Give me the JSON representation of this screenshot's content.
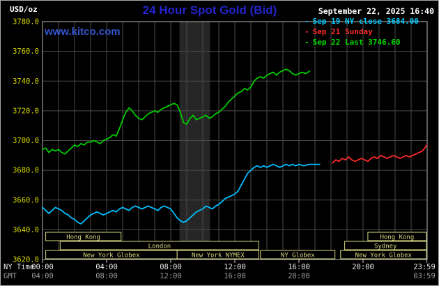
{
  "header": {
    "unit": "USD/oz",
    "title": "24 Hour Spot Gold (Bid)",
    "datetime": "September 22, 2025 16:40",
    "watermark": "www.kitco.com"
  },
  "legend": [
    {
      "marker": "-",
      "label": "Sep 19 NY close 3684.00",
      "color": "#00ccff"
    },
    {
      "marker": "-",
      "label": "Sep 21 Sunday",
      "color": "#ff2a2a"
    },
    {
      "marker": "-",
      "label": "Sep 22 Last 3746.60",
      "color": "#00dd00"
    }
  ],
  "colors": {
    "background": "#000000",
    "border": "#a8a8a8",
    "grid": "#4a4a4a",
    "plot_border": "#b9b9b9",
    "shade_band": "#262626",
    "tick_mark": "#cccccc",
    "y_tick": "#d4d400",
    "x_tick_ny": "#e8e8e8",
    "x_tick_gmt": "#9a9a9a",
    "session": "#d8d882",
    "title": "#2424cc",
    "watermark": "#3355d0",
    "datetime": "#ffffff",
    "unit": "#ffffff"
  },
  "axes": {
    "ny_label": "NY Time",
    "gmt_label": "GMT",
    "y_ticks": [
      "3780.0",
      "3760.0",
      "3740.0",
      "3720.0",
      "3700.0",
      "3680.0",
      "3660.0",
      "3640.0",
      "3620.0"
    ],
    "x_ticks_ny": [
      {
        "hour": 0,
        "label": "00:00"
      },
      {
        "hour": 4,
        "label": "04:00"
      },
      {
        "hour": 8,
        "label": "08:00"
      },
      {
        "hour": 12,
        "label": "12:00"
      },
      {
        "hour": 16,
        "label": "16:00"
      },
      {
        "hour": 20,
        "label": "20:00"
      },
      {
        "hour": 23.983,
        "label": "23:59"
      }
    ],
    "x_ticks_gmt": [
      {
        "hour": 0,
        "label": "04:00"
      },
      {
        "hour": 4,
        "label": "08:00"
      },
      {
        "hour": 8,
        "label": "12:00"
      },
      {
        "hour": 12,
        "label": "16:00"
      },
      {
        "hour": 16,
        "label": "20:00"
      },
      {
        "hour": 23.983,
        "label": "03:59"
      }
    ]
  },
  "sessions": [
    {
      "row": 0,
      "label": "Hong Kong",
      "start": 0.2,
      "end": 4.9
    },
    {
      "row": 0,
      "label": "Hong Kong",
      "start": 20.3,
      "end": 23.95
    },
    {
      "row": 1,
      "label": "London",
      "start": 1.1,
      "end": 13.5
    },
    {
      "row": 1,
      "label": "Sydney",
      "start": 18.85,
      "end": 23.95
    },
    {
      "row": 2,
      "label": "New York Globex",
      "start": 0.2,
      "end": 8.4
    },
    {
      "row": 2,
      "label": "New York NYMEX",
      "start": 8.4,
      "end": 13.5
    },
    {
      "row": 2,
      "label": "NY Globex",
      "start": 13.6,
      "end": 18.25
    },
    {
      "row": 2,
      "label": "New York Globex",
      "start": 18.6,
      "end": 23.95
    }
  ],
  "chart_data": {
    "type": "line",
    "title": "24 Hour Spot Gold (Bid)",
    "ylabel": "USD/oz",
    "xlabel": "NY Time (hours)",
    "ylim": [
      3620,
      3780
    ],
    "y_tick_step": 20,
    "xlim_hours": [
      0,
      24
    ],
    "grid": true,
    "legend_position": "top-right",
    "shaded_band_hours": [
      8.55,
      10.45
    ],
    "series": [
      {
        "name": "Sep 19 NY close 3684.00",
        "color": "#00bfff",
        "points": [
          [
            0,
            3655
          ],
          [
            0.2,
            3653
          ],
          [
            0.4,
            3651
          ],
          [
            0.6,
            3653
          ],
          [
            0.8,
            3655
          ],
          [
            1,
            3654
          ],
          [
            1.2,
            3653
          ],
          [
            1.4,
            3651
          ],
          [
            1.6,
            3650
          ],
          [
            1.8,
            3648
          ],
          [
            2,
            3647
          ],
          [
            2.2,
            3645
          ],
          [
            2.4,
            3644
          ],
          [
            2.6,
            3646
          ],
          [
            2.8,
            3648
          ],
          [
            3,
            3650
          ],
          [
            3.2,
            3651
          ],
          [
            3.4,
            3652
          ],
          [
            3.6,
            3651
          ],
          [
            3.8,
            3650
          ],
          [
            4,
            3651
          ],
          [
            4.2,
            3652
          ],
          [
            4.4,
            3653
          ],
          [
            4.6,
            3652
          ],
          [
            4.8,
            3654
          ],
          [
            5,
            3655
          ],
          [
            5.2,
            3654
          ],
          [
            5.4,
            3653
          ],
          [
            5.6,
            3655
          ],
          [
            5.8,
            3656
          ],
          [
            6,
            3655
          ],
          [
            6.2,
            3654
          ],
          [
            6.4,
            3655
          ],
          [
            6.6,
            3656
          ],
          [
            6.8,
            3655
          ],
          [
            7,
            3654
          ],
          [
            7.2,
            3653
          ],
          [
            7.4,
            3655
          ],
          [
            7.6,
            3656
          ],
          [
            7.8,
            3655
          ],
          [
            8,
            3654
          ],
          [
            8.2,
            3651
          ],
          [
            8.4,
            3648
          ],
          [
            8.6,
            3646
          ],
          [
            8.8,
            3645
          ],
          [
            9,
            3646
          ],
          [
            9.2,
            3648
          ],
          [
            9.4,
            3650
          ],
          [
            9.6,
            3652
          ],
          [
            9.8,
            3653
          ],
          [
            10,
            3654
          ],
          [
            10.2,
            3656
          ],
          [
            10.4,
            3655
          ],
          [
            10.6,
            3654
          ],
          [
            10.8,
            3656
          ],
          [
            11,
            3657
          ],
          [
            11.2,
            3659
          ],
          [
            11.4,
            3661
          ],
          [
            11.6,
            3662
          ],
          [
            11.8,
            3663
          ],
          [
            12,
            3664
          ],
          [
            12.2,
            3666
          ],
          [
            12.4,
            3670
          ],
          [
            12.6,
            3674
          ],
          [
            12.8,
            3678
          ],
          [
            13,
            3680
          ],
          [
            13.2,
            3682
          ],
          [
            13.4,
            3683
          ],
          [
            13.6,
            3682
          ],
          [
            13.8,
            3683
          ],
          [
            14,
            3682
          ],
          [
            14.2,
            3683
          ],
          [
            14.4,
            3684
          ],
          [
            14.6,
            3683
          ],
          [
            14.8,
            3682
          ],
          [
            15,
            3683
          ],
          [
            15.2,
            3684
          ],
          [
            15.4,
            3683
          ],
          [
            15.6,
            3684
          ],
          [
            15.8,
            3683
          ],
          [
            16,
            3684
          ],
          [
            16.3,
            3683
          ],
          [
            16.6,
            3684
          ],
          [
            17,
            3684
          ],
          [
            17.3,
            3684
          ]
        ]
      },
      {
        "name": "Sep 21 Sunday",
        "color": "#ff2a2a",
        "points": [
          [
            18.1,
            3685
          ],
          [
            18.3,
            3687
          ],
          [
            18.5,
            3686
          ],
          [
            18.7,
            3688
          ],
          [
            18.9,
            3687
          ],
          [
            19.1,
            3689
          ],
          [
            19.3,
            3687
          ],
          [
            19.5,
            3686
          ],
          [
            19.7,
            3687
          ],
          [
            19.9,
            3688
          ],
          [
            20.1,
            3687
          ],
          [
            20.3,
            3686
          ],
          [
            20.5,
            3688
          ],
          [
            20.7,
            3689
          ],
          [
            20.9,
            3688
          ],
          [
            21.1,
            3690
          ],
          [
            21.3,
            3689
          ],
          [
            21.5,
            3688
          ],
          [
            21.7,
            3689
          ],
          [
            21.9,
            3690
          ],
          [
            22.1,
            3689
          ],
          [
            22.3,
            3688
          ],
          [
            22.5,
            3689
          ],
          [
            22.7,
            3690
          ],
          [
            22.9,
            3689
          ],
          [
            23.1,
            3690
          ],
          [
            23.3,
            3691
          ],
          [
            23.5,
            3692
          ],
          [
            23.7,
            3693
          ],
          [
            23.85,
            3695
          ],
          [
            23.98,
            3697
          ]
        ]
      },
      {
        "name": "Sep 22 Last 3746.60",
        "color": "#00cc00",
        "points": [
          [
            0,
            3694
          ],
          [
            0.2,
            3695
          ],
          [
            0.4,
            3692
          ],
          [
            0.6,
            3694
          ],
          [
            0.8,
            3693
          ],
          [
            1,
            3694
          ],
          [
            1.2,
            3692
          ],
          [
            1.4,
            3691
          ],
          [
            1.6,
            3693
          ],
          [
            1.8,
            3695
          ],
          [
            2,
            3697
          ],
          [
            2.2,
            3696
          ],
          [
            2.4,
            3698
          ],
          [
            2.6,
            3697
          ],
          [
            2.8,
            3699
          ],
          [
            3,
            3699
          ],
          [
            3.2,
            3700
          ],
          [
            3.4,
            3699
          ],
          [
            3.6,
            3698
          ],
          [
            3.8,
            3700
          ],
          [
            4,
            3701
          ],
          [
            4.2,
            3702
          ],
          [
            4.4,
            3704
          ],
          [
            4.6,
            3703
          ],
          [
            4.8,
            3708
          ],
          [
            5,
            3714
          ],
          [
            5.2,
            3719
          ],
          [
            5.4,
            3722
          ],
          [
            5.6,
            3720
          ],
          [
            5.8,
            3717
          ],
          [
            6,
            3715
          ],
          [
            6.2,
            3714
          ],
          [
            6.4,
            3716
          ],
          [
            6.6,
            3718
          ],
          [
            6.8,
            3719
          ],
          [
            7,
            3720
          ],
          [
            7.2,
            3719
          ],
          [
            7.4,
            3721
          ],
          [
            7.6,
            3722
          ],
          [
            7.8,
            3723
          ],
          [
            8,
            3724
          ],
          [
            8.2,
            3725
          ],
          [
            8.4,
            3724
          ],
          [
            8.6,
            3719
          ],
          [
            8.8,
            3712
          ],
          [
            9,
            3711
          ],
          [
            9.2,
            3715
          ],
          [
            9.4,
            3717
          ],
          [
            9.6,
            3714
          ],
          [
            9.8,
            3715
          ],
          [
            10,
            3716
          ],
          [
            10.2,
            3717
          ],
          [
            10.4,
            3715
          ],
          [
            10.6,
            3716
          ],
          [
            10.8,
            3718
          ],
          [
            11,
            3719
          ],
          [
            11.2,
            3721
          ],
          [
            11.4,
            3723
          ],
          [
            11.6,
            3726
          ],
          [
            11.8,
            3728
          ],
          [
            12,
            3730
          ],
          [
            12.2,
            3732
          ],
          [
            12.4,
            3733
          ],
          [
            12.6,
            3735
          ],
          [
            12.8,
            3734
          ],
          [
            13,
            3736
          ],
          [
            13.2,
            3740
          ],
          [
            13.4,
            3742
          ],
          [
            13.6,
            3743
          ],
          [
            13.8,
            3742
          ],
          [
            14,
            3744
          ],
          [
            14.2,
            3745
          ],
          [
            14.4,
            3746
          ],
          [
            14.6,
            3744
          ],
          [
            14.8,
            3746
          ],
          [
            15,
            3747
          ],
          [
            15.2,
            3748
          ],
          [
            15.4,
            3747
          ],
          [
            15.6,
            3745
          ],
          [
            15.8,
            3744
          ],
          [
            16,
            3745
          ],
          [
            16.2,
            3746
          ],
          [
            16.4,
            3745
          ],
          [
            16.67,
            3746.6
          ]
        ]
      }
    ]
  }
}
